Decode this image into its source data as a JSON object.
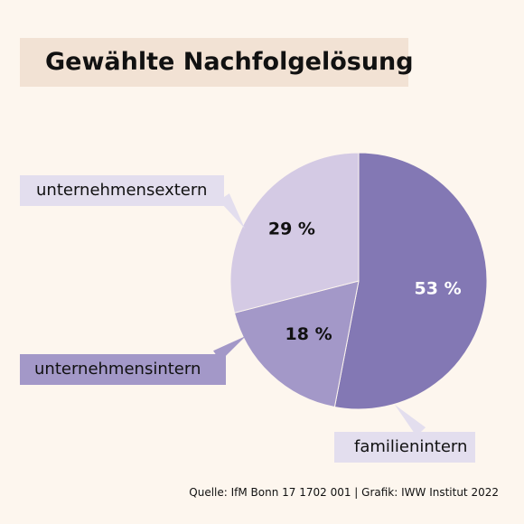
{
  "title": "Gewählte Nachfolgelösung",
  "source": "Quelle: IfM Bonn 17 1702 001 | Grafik: IWW Institut 2022",
  "colors": {
    "background": "#fdf6ee",
    "title_box": "#f2e2d4",
    "familienintern": "#8378b4",
    "unternehmensintern": "#a398c8",
    "unternehmensextern": "#d4cae4",
    "label_family_box": "#e3deee",
    "label_internal_box": "#a398c8",
    "label_external_box": "#e3deee"
  },
  "chart_data": {
    "type": "pie",
    "slices": [
      {
        "category": "familienintern",
        "value": 53,
        "label": "53 %"
      },
      {
        "category": "unternehmensintern",
        "value": 18,
        "label": "18 %"
      },
      {
        "category": "unternehmensextern",
        "value": 29,
        "label": "29 %"
      }
    ]
  }
}
